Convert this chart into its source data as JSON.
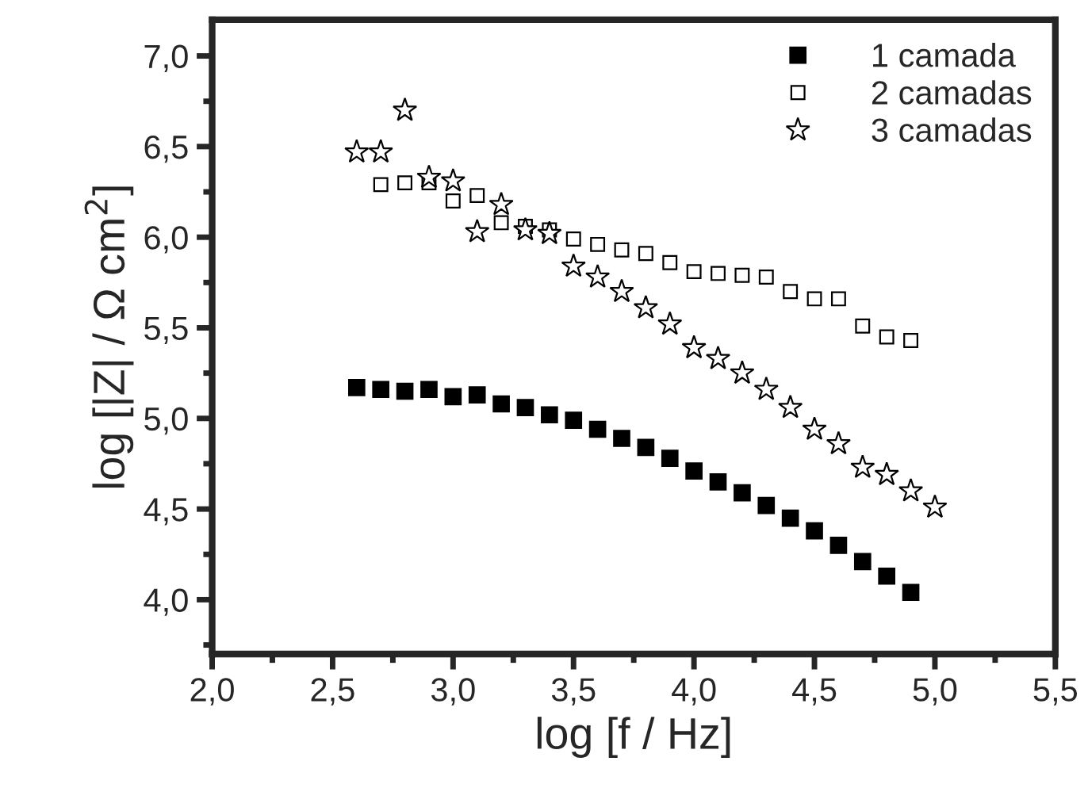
{
  "chart_data": {
    "type": "scatter",
    "xlabel": "log [f / Hz]",
    "ylabel": "log [|Z| / Ω cm$^{2}$]",
    "xlim": [
      2.0,
      5.5
    ],
    "ylim": [
      3.7,
      7.2
    ],
    "xticks": [
      {
        "value": 2.0,
        "label": "2,0"
      },
      {
        "value": 2.5,
        "label": "2,5"
      },
      {
        "value": 3.0,
        "label": "3,0"
      },
      {
        "value": 3.5,
        "label": "3,5"
      },
      {
        "value": 4.0,
        "label": "4,0"
      },
      {
        "value": 4.5,
        "label": "4,5"
      },
      {
        "value": 5.0,
        "label": "5,0"
      },
      {
        "value": 5.5,
        "label": "5,5"
      }
    ],
    "yticks": [
      {
        "value": 4.0,
        "label": "4,0"
      },
      {
        "value": 4.5,
        "label": "4,5"
      },
      {
        "value": 5.0,
        "label": "5,0"
      },
      {
        "value": 5.5,
        "label": "5,5"
      },
      {
        "value": 6.0,
        "label": "6,0"
      },
      {
        "value": 6.5,
        "label": "6,5"
      },
      {
        "value": 7.0,
        "label": "7,0"
      }
    ],
    "grid": false,
    "legend": "top right",
    "series": [
      {
        "name": "1 camada",
        "color": "#000000",
        "marker": "square",
        "x": [
          2.6,
          2.7,
          2.8,
          2.9,
          3.0,
          3.1,
          3.2,
          3.3,
          3.4,
          3.5,
          3.6,
          3.7,
          3.8,
          3.9,
          4.0,
          4.1,
          4.2,
          4.3,
          4.4,
          4.5,
          4.6,
          4.7,
          4.8,
          4.9
        ],
        "values": [
          5.17,
          5.16,
          5.15,
          5.16,
          5.12,
          5.13,
          5.08,
          5.06,
          5.02,
          4.99,
          4.94,
          4.89,
          4.84,
          4.78,
          4.71,
          4.65,
          4.59,
          4.52,
          4.45,
          4.38,
          4.3,
          4.21,
          4.13,
          4.04
        ]
      },
      {
        "name": "2 camadas",
        "color": "#000000",
        "marker": "square",
        "x": [
          2.7,
          2.8,
          2.9,
          3.0,
          3.1,
          3.2,
          3.3,
          3.4,
          3.5,
          3.6,
          3.7,
          3.8,
          3.9,
          4.0,
          4.1,
          4.2,
          4.3,
          4.4,
          4.5,
          4.6,
          4.7,
          4.8,
          4.9
        ],
        "values": [
          6.29,
          6.3,
          6.3,
          6.2,
          6.23,
          6.08,
          6.06,
          6.04,
          5.99,
          5.96,
          5.93,
          5.91,
          5.86,
          5.81,
          5.8,
          5.79,
          5.78,
          5.7,
          5.66,
          5.66,
          5.51,
          5.45,
          5.43
        ]
      },
      {
        "name": "3 camadas",
        "color": "#000000",
        "marker": "star",
        "x": [
          2.6,
          2.7,
          2.8,
          2.9,
          3.0,
          3.1,
          3.2,
          3.3,
          3.4,
          3.5,
          3.6,
          3.7,
          3.8,
          3.9,
          4.0,
          4.1,
          4.2,
          4.3,
          4.4,
          4.5,
          4.6,
          4.7,
          4.8,
          4.9,
          5.0
        ],
        "values": [
          6.47,
          6.47,
          6.7,
          6.33,
          6.31,
          6.03,
          6.18,
          6.04,
          6.02,
          5.84,
          5.78,
          5.7,
          5.61,
          5.52,
          5.39,
          5.33,
          5.25,
          5.16,
          5.06,
          4.94,
          4.86,
          4.73,
          4.69,
          4.6,
          4.51
        ]
      }
    ]
  }
}
